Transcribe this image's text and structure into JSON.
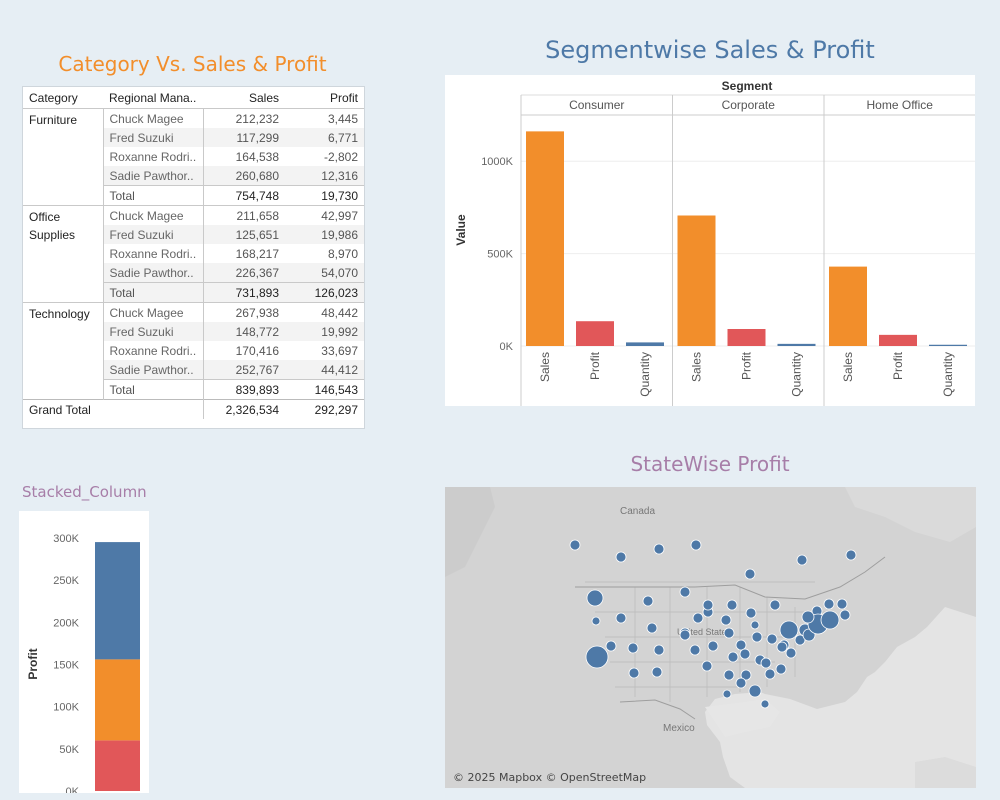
{
  "crosstab": {
    "title": "Category Vs. Sales & Profit",
    "headers": {
      "category": "Category",
      "manager": "Regional Mana..",
      "sales": "Sales",
      "profit": "Profit"
    },
    "groups": [
      {
        "category": "Furniture",
        "rows": [
          {
            "manager": "Chuck Magee",
            "sales": "212,232",
            "profit": "3,445"
          },
          {
            "manager": "Fred Suzuki",
            "sales": "117,299",
            "profit": "6,771"
          },
          {
            "manager": "Roxanne Rodri..",
            "sales": "164,538",
            "profit": "-2,802"
          },
          {
            "manager": "Sadie Pawthor..",
            "sales": "260,680",
            "profit": "12,316"
          }
        ],
        "total": {
          "label": "Total",
          "sales": "754,748",
          "profit": "19,730"
        }
      },
      {
        "category": "Office Supplies",
        "rows": [
          {
            "manager": "Chuck Magee",
            "sales": "211,658",
            "profit": "42,997"
          },
          {
            "manager": "Fred Suzuki",
            "sales": "125,651",
            "profit": "19,986"
          },
          {
            "manager": "Roxanne Rodri..",
            "sales": "168,217",
            "profit": "8,970"
          },
          {
            "manager": "Sadie Pawthor..",
            "sales": "226,367",
            "profit": "54,070"
          }
        ],
        "total": {
          "label": "Total",
          "sales": "731,893",
          "profit": "126,023"
        }
      },
      {
        "category": "Technology",
        "rows": [
          {
            "manager": "Chuck Magee",
            "sales": "267,938",
            "profit": "48,442"
          },
          {
            "manager": "Fred Suzuki",
            "sales": "148,772",
            "profit": "19,992"
          },
          {
            "manager": "Roxanne Rodri..",
            "sales": "170,416",
            "profit": "33,697"
          },
          {
            "manager": "Sadie Pawthor..",
            "sales": "252,767",
            "profit": "44,412"
          }
        ],
        "total": {
          "label": "Total",
          "sales": "839,893",
          "profit": "146,543"
        }
      }
    ],
    "grand_total": {
      "label": "Grand Total",
      "sales": "2,326,534",
      "profit": "292,297"
    }
  },
  "segment_chart": {
    "title": "Segmentwise Sales & Profit",
    "header": "Segment",
    "ylabel": "Value"
  },
  "stacked_chart": {
    "title": "Stacked_Column",
    "ylabel": "Profit"
  },
  "map": {
    "title": "StateWise Profit",
    "attribution": "© 2025 Mapbox © OpenStreetMap",
    "labels": {
      "canada": "Canada",
      "mexico": "Mexico",
      "united_states": "United States"
    }
  },
  "colors": {
    "sales": "#f28e2b",
    "profit": "#e15759",
    "quantity": "#4e79a7",
    "title_orange": "#f28e2b",
    "title_blue": "#4e79a7",
    "title_purple": "#a77ea8"
  },
  "chart_data": [
    {
      "type": "bar",
      "title": "Segmentwise Sales & Profit",
      "facet_label": "Segment",
      "facets": [
        "Consumer",
        "Corporate",
        "Home Office"
      ],
      "categories": [
        "Sales",
        "Profit",
        "Quantity"
      ],
      "series": [
        {
          "facet": "Consumer",
          "values": [
            1161401,
            134119,
            19521
          ]
        },
        {
          "facet": "Corporate",
          "values": [
            706146,
            91979,
            11608
          ]
        },
        {
          "facet": "Home Office",
          "values": [
            429653,
            60299,
            6744
          ]
        }
      ],
      "ylabel": "Value",
      "ylim": [
        0,
        1250000
      ],
      "yticks": [
        0,
        500000,
        1000000
      ],
      "ytick_labels": [
        "0K",
        "500K",
        "1000K"
      ],
      "bar_colors": [
        "#f28e2b",
        "#e15759",
        "#4e79a7"
      ],
      "grid": true
    },
    {
      "type": "bar",
      "stacked": true,
      "title": "Stacked_Column",
      "ylabel": "Profit",
      "stack": [
        {
          "value": 60000,
          "color": "#e15759"
        },
        {
          "value": 96000,
          "color": "#f28e2b"
        },
        {
          "value": 139000,
          "color": "#4e79a7"
        }
      ],
      "ylim": [
        0,
        320000
      ],
      "yticks": [
        0,
        50000,
        100000,
        150000,
        200000,
        250000,
        300000
      ],
      "ytick_labels": [
        "0K",
        "50K",
        "100K",
        "150K",
        "200K",
        "250K",
        "300K"
      ]
    }
  ]
}
